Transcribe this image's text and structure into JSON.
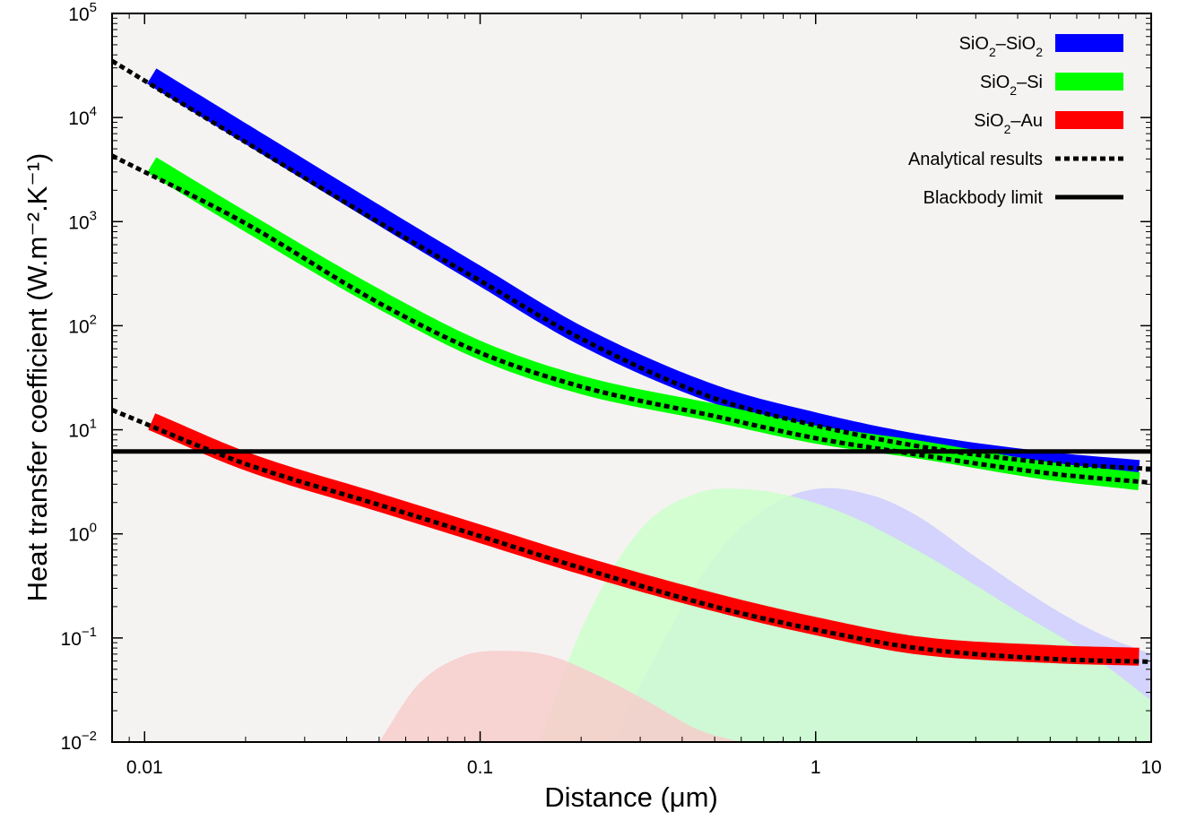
{
  "chart_data": {
    "type": "line",
    "xlabel": "Distance (μm)",
    "ylabel": "Heat transfer coefficient (W.m⁻².K⁻¹)",
    "xscale": "log",
    "yscale": "log",
    "xlim": [
      0.008,
      10
    ],
    "ylim": [
      0.01,
      100000
    ],
    "x_ticks": [
      {
        "value": 0.01,
        "label": "0.01"
      },
      {
        "value": 0.1,
        "label": "0.1"
      },
      {
        "value": 1,
        "label": "1"
      },
      {
        "value": 10,
        "label": "10"
      }
    ],
    "y_ticks": [
      {
        "value": 0.01,
        "base": "10",
        "exp": "−2"
      },
      {
        "value": 0.1,
        "base": "10",
        "exp": "−1"
      },
      {
        "value": 1,
        "base": "10",
        "exp": "0"
      },
      {
        "value": 10,
        "base": "10",
        "exp": "1"
      },
      {
        "value": 100,
        "base": "10",
        "exp": "2"
      },
      {
        "value": 1000,
        "base": "10",
        "exp": "3"
      },
      {
        "value": 10000,
        "base": "10",
        "exp": "4"
      },
      {
        "value": 100000,
        "base": "10",
        "exp": "5"
      }
    ],
    "grid": false,
    "legend_position": "top-right",
    "background_color": "#f5f3f1",
    "series": [
      {
        "name": "SiO₂–SiO₂",
        "color": "#0000ff",
        "style": "thick",
        "x": [
          0.0105,
          0.02,
          0.05,
          0.1,
          0.2,
          0.5,
          1,
          2,
          5,
          9.2
        ],
        "y": [
          25000,
          7000,
          1150,
          300,
          80,
          22,
          12,
          7.5,
          5,
          4.2
        ]
      },
      {
        "name": "SiO₂–Si",
        "color": "#00ff00",
        "style": "thick",
        "x": [
          0.0105,
          0.02,
          0.05,
          0.1,
          0.2,
          0.5,
          1,
          2,
          5,
          9.2
        ],
        "y": [
          3500,
          1000,
          180,
          58,
          27,
          14.5,
          9,
          6.5,
          4,
          3.2
        ]
      },
      {
        "name": "SiO₂–Au",
        "color": "#ff0000",
        "style": "thick",
        "x": [
          0.0105,
          0.02,
          0.05,
          0.1,
          0.2,
          0.5,
          1,
          2,
          5,
          9.2
        ],
        "y": [
          12,
          5,
          2,
          1,
          0.5,
          0.22,
          0.13,
          0.085,
          0.07,
          0.066
        ]
      },
      {
        "name": "Analytical results",
        "color": "#000000",
        "style": "dashed",
        "x": [
          0.008,
          0.02,
          0.05,
          0.1,
          0.2,
          0.5,
          1,
          2,
          5,
          10
        ],
        "y": [
          35000,
          5800,
          980,
          270,
          75,
          20,
          11,
          7,
          4.8,
          4.2
        ]
      },
      {
        "name": "",
        "color": "#000000",
        "style": "dashed",
        "x": [
          0.008,
          0.02,
          0.05,
          0.1,
          0.2,
          0.5,
          1,
          2,
          5,
          10
        ],
        "y": [
          4300,
          960,
          165,
          55,
          26,
          13.5,
          8.3,
          5.8,
          3.8,
          3.1
        ]
      },
      {
        "name": "",
        "color": "#000000",
        "style": "dashed",
        "x": [
          0.008,
          0.02,
          0.05,
          0.1,
          0.2,
          0.5,
          1,
          2,
          5,
          10
        ],
        "y": [
          15.5,
          4.7,
          1.9,
          0.95,
          0.47,
          0.2,
          0.12,
          0.08,
          0.063,
          0.059
        ]
      },
      {
        "name": "Blackbody limit",
        "color": "#000000",
        "style": "solid",
        "x": [
          0.008,
          10
        ],
        "y": [
          6.2,
          6.2
        ]
      }
    ],
    "shaded_regions": [
      {
        "color": "#ccccff",
        "x": [
          0.25,
          0.3,
          0.5,
          0.7,
          1,
          1.5,
          2,
          3,
          5,
          7,
          10
        ],
        "y": [
          0.01,
          0.035,
          0.6,
          1.7,
          2.7,
          2.3,
          1.5,
          0.6,
          0.2,
          0.11,
          0.07
        ]
      },
      {
        "color": "#ccffcc",
        "x": [
          0.15,
          0.2,
          0.3,
          0.45,
          0.6,
          0.8,
          1.2,
          2,
          4,
          7,
          10
        ],
        "y": [
          0.01,
          0.12,
          1.1,
          2.5,
          2.7,
          2.4,
          1.6,
          0.7,
          0.18,
          0.06,
          0.025
        ]
      },
      {
        "color": "#f7cccc",
        "x": [
          0.05,
          0.065,
          0.09,
          0.12,
          0.16,
          0.22,
          0.32,
          0.45,
          0.6
        ],
        "y": [
          0.01,
          0.035,
          0.068,
          0.075,
          0.068,
          0.045,
          0.024,
          0.013,
          0.01
        ]
      }
    ],
    "legend": [
      {
        "label_base": "SiO",
        "label_sub1": "2",
        "label_mid": "–SiO",
        "label_sub2": "2",
        "label_tail": "",
        "swatch": "#0000ff",
        "kind": "box"
      },
      {
        "label_base": "SiO",
        "label_sub1": "2",
        "label_mid": "–Si",
        "label_sub2": "",
        "label_tail": "",
        "swatch": "#00ff00",
        "kind": "box"
      },
      {
        "label_base": "SiO",
        "label_sub1": "2",
        "label_mid": "–Au",
        "label_sub2": "",
        "label_tail": "",
        "swatch": "#ff0000",
        "kind": "box"
      },
      {
        "label_base": "Analytical results",
        "label_sub1": "",
        "label_mid": "",
        "label_sub2": "",
        "label_tail": "",
        "swatch": "#000000",
        "kind": "dashed"
      },
      {
        "label_base": "Blackbody limit",
        "label_sub1": "",
        "label_mid": "",
        "label_sub2": "",
        "label_tail": "",
        "swatch": "#000000",
        "kind": "solid"
      }
    ]
  }
}
